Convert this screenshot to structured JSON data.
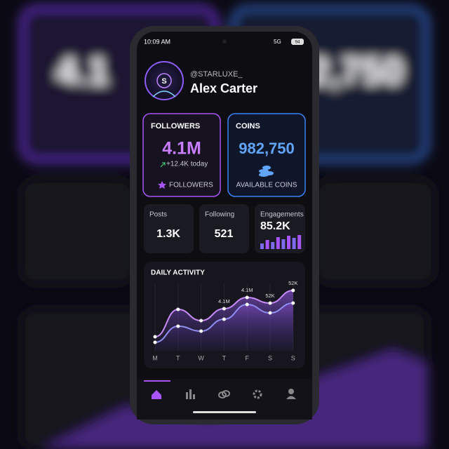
{
  "status_bar": {
    "time": "10:09 AM",
    "network": "5G",
    "battery": "94"
  },
  "profile": {
    "handle": "@STARLUXE_",
    "name": "Alex Carter",
    "avatar_initial": "S"
  },
  "followers_card": {
    "title": "FOLLOWERS",
    "value": "4.1M",
    "change": "+12.4K today",
    "footer": "FOLLOWERS"
  },
  "coins_card": {
    "title": "COINS",
    "value": "982,750",
    "footer": "AVAILABLE COINS"
  },
  "stats": [
    {
      "label": "Posts",
      "value": "1.3K"
    },
    {
      "label": "Following",
      "value": "521"
    },
    {
      "label": "Engagements",
      "value": "85.2K"
    }
  ],
  "engagement_bars": [
    40,
    65,
    50,
    85,
    70,
    95,
    80,
    100
  ],
  "daily_activity": {
    "title": "DAILY ACTIVITY",
    "days": [
      "M",
      "T",
      "W",
      "T",
      "F",
      "S",
      "S"
    ],
    "series": [
      {
        "color": "#c58cf7",
        "values": [
          20,
          59,
          43,
          60,
          76,
          68,
          86
        ],
        "value_labels": [
          null,
          null,
          null,
          "4.1M",
          "4.1M",
          "52K",
          "52K"
        ]
      },
      {
        "color": "#8f8df0",
        "values": [
          12,
          35,
          28,
          45,
          66,
          54,
          68
        ]
      }
    ]
  }
}
